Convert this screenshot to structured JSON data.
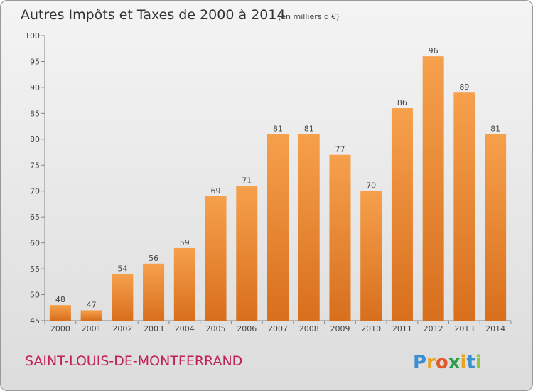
{
  "chart_data": {
    "type": "bar",
    "title": "Autres Impôts et Taxes de 2000 à 2014",
    "unit": "(en milliers d'€)",
    "categories": [
      "2000",
      "2001",
      "2002",
      "2003",
      "2004",
      "2005",
      "2006",
      "2007",
      "2008",
      "2009",
      "2010",
      "2011",
      "2012",
      "2013",
      "2014"
    ],
    "values": [
      48,
      47,
      54,
      56,
      59,
      69,
      71,
      81,
      81,
      77,
      70,
      86,
      96,
      89,
      81
    ],
    "ylim": [
      45,
      100
    ],
    "yticks": [
      45,
      50,
      55,
      60,
      65,
      70,
      75,
      80,
      85,
      90,
      95,
      100
    ],
    "grid": false,
    "bar_color": "#f0973f"
  },
  "commune": "SAINT-LOUIS-DE-MONTFERRAND",
  "logo": {
    "text": "Proxiti",
    "letters": [
      "P",
      "r",
      "o",
      "x",
      "i",
      "t",
      "i"
    ],
    "colors": [
      "#3b8fd1",
      "#e8a21b",
      "#e15a2a",
      "#2f9e4a",
      "#e8a21b",
      "#3b8fd1",
      "#8cc63f"
    ]
  }
}
